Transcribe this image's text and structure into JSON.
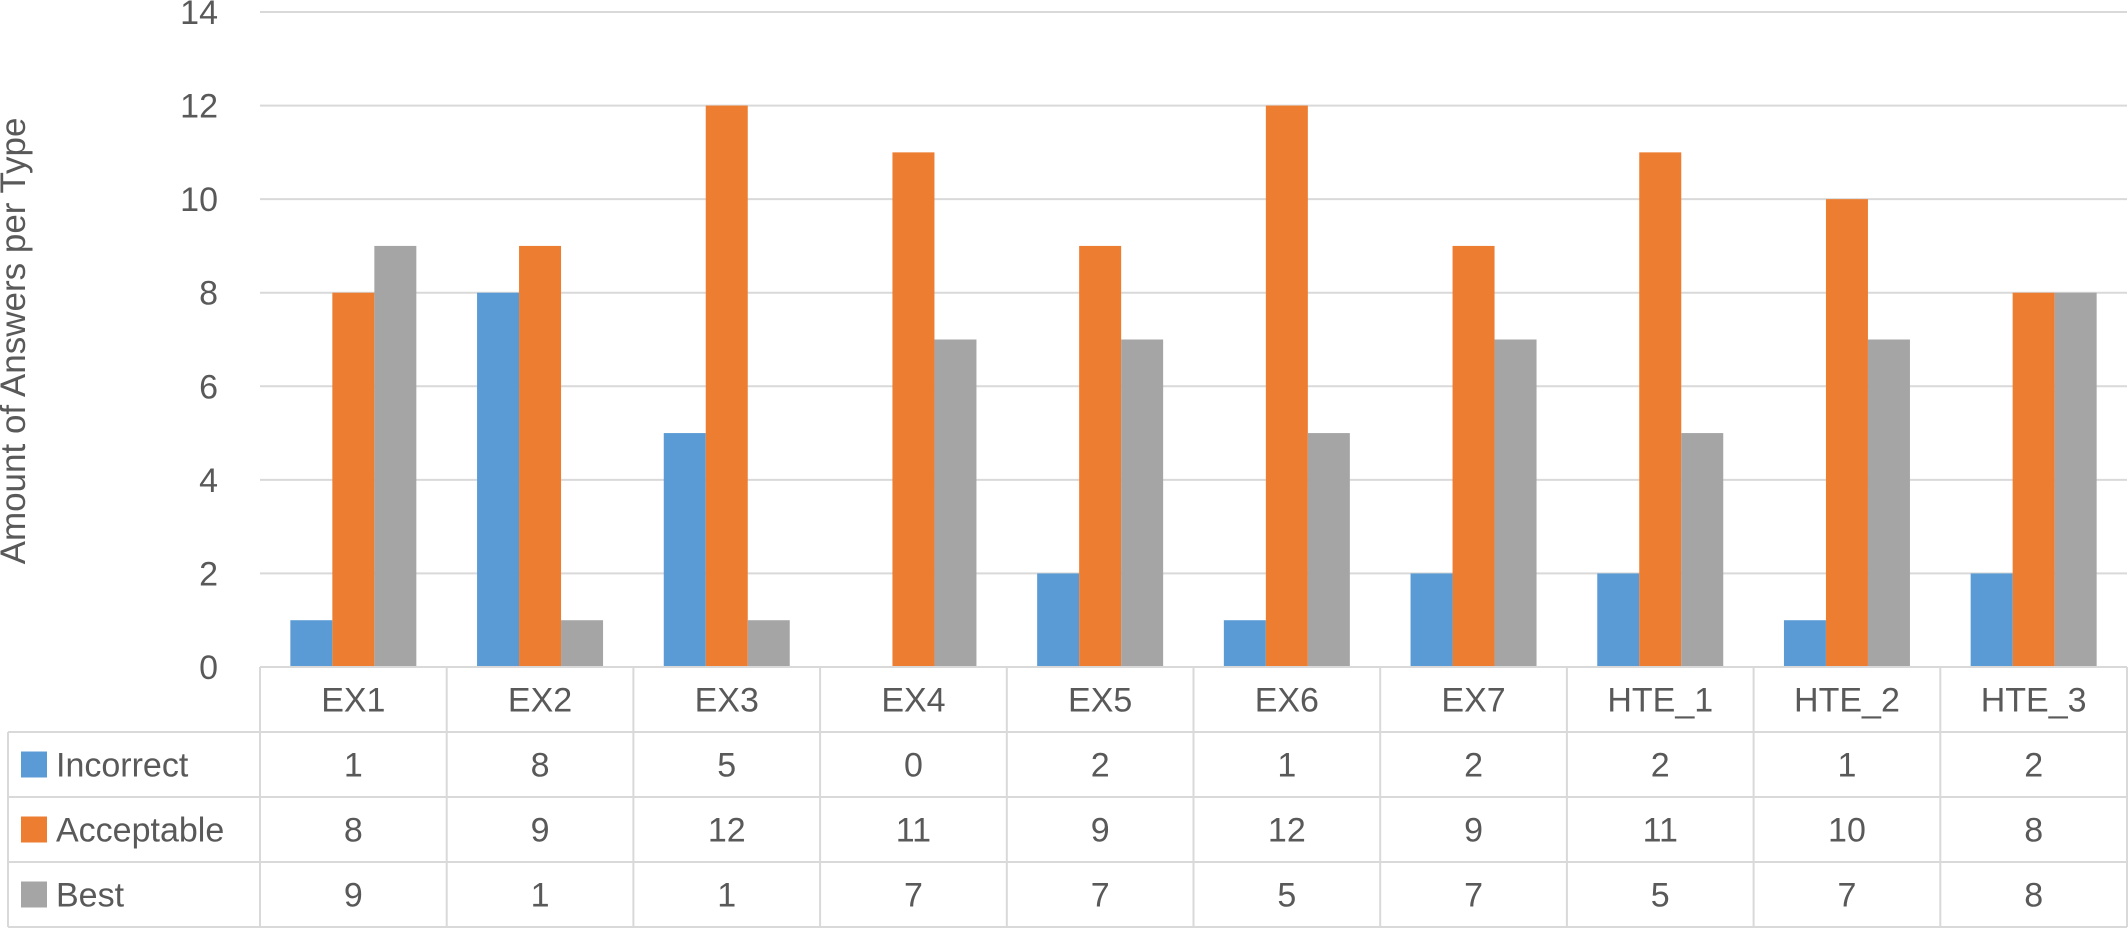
{
  "chart_data": {
    "type": "bar",
    "title": "",
    "xlabel": "",
    "ylabel": "Amount of Answers per Type",
    "ylim": [
      0,
      14
    ],
    "yticks": [
      "0",
      "2",
      "4",
      "6",
      "8",
      "10",
      "12",
      "14"
    ],
    "grid": true,
    "legend": "data-table",
    "categories": [
      "EX1",
      "EX2",
      "EX3",
      "EX4",
      "EX5",
      "EX6",
      "EX7",
      "HTE_1",
      "HTE_2",
      "HTE_3"
    ],
    "series": [
      {
        "name": "Incorrect",
        "color": "#5B9BD5",
        "values": [
          1,
          8,
          5,
          0,
          2,
          1,
          2,
          2,
          1,
          2
        ]
      },
      {
        "name": "Acceptable",
        "color": "#ED7D31",
        "values": [
          8,
          9,
          12,
          11,
          9,
          12,
          9,
          11,
          10,
          8
        ]
      },
      {
        "name": "Best",
        "color": "#A5A5A5",
        "values": [
          9,
          1,
          1,
          7,
          7,
          5,
          7,
          5,
          7,
          8
        ]
      }
    ]
  }
}
